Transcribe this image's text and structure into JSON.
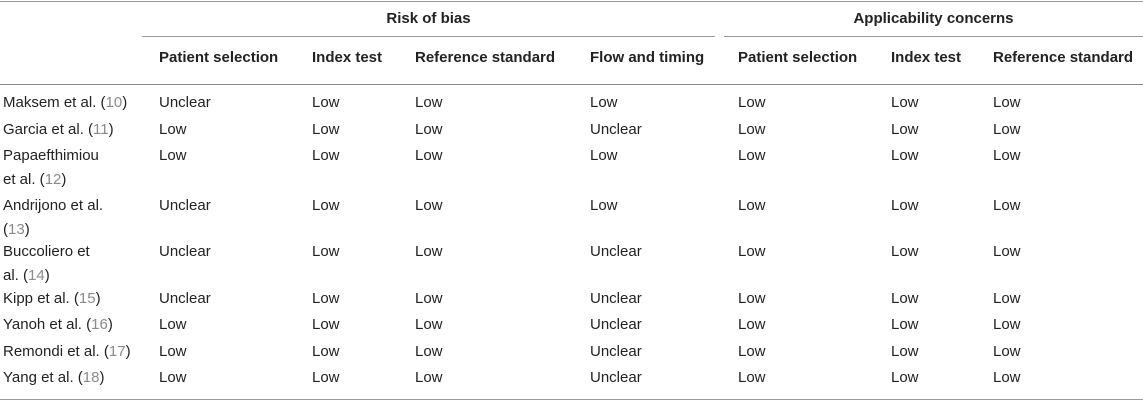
{
  "group_headers": {
    "risk_of_bias": "Risk of bias",
    "applicability": "Applicability concerns"
  },
  "columns": [
    "Patient selection",
    "Index test",
    "Reference standard",
    "Flow and timing",
    "Patient selection",
    "Index test",
    "Reference standard"
  ],
  "rows": [
    {
      "study": "Maksem et al. (",
      "ref": "10",
      "close": ")",
      "values": [
        "Unclear",
        "Low",
        "Low",
        "Low",
        "Low",
        "Low",
        "Low"
      ]
    },
    {
      "study": "Garcia et al. (",
      "ref": "11",
      "close": ")",
      "values": [
        "Low",
        "Low",
        "Low",
        "Unclear",
        "Low",
        "Low",
        "Low"
      ]
    },
    {
      "study": "Papaefthimiou et al. (",
      "ref": "12",
      "close": ")",
      "values": [
        "Low",
        "Low",
        "Low",
        "Low",
        "Low",
        "Low",
        "Low"
      ]
    },
    {
      "study": "Andrijono et al. (",
      "ref": "13",
      "close": ")",
      "values": [
        "Unclear",
        "Low",
        "Low",
        "Low",
        "Low",
        "Low",
        "Low"
      ]
    },
    {
      "study": "Buccoliero et al. (",
      "ref": "14",
      "close": ")",
      "values": [
        "Unclear",
        "Low",
        "Low",
        "Unclear",
        "Low",
        "Low",
        "Low"
      ]
    },
    {
      "study": "Kipp et al. (",
      "ref": "15",
      "close": ")",
      "values": [
        "Unclear",
        "Low",
        "Low",
        "Unclear",
        "Low",
        "Low",
        "Low"
      ]
    },
    {
      "study": "Yanoh et al. (",
      "ref": "16",
      "close": ")",
      "values": [
        "Low",
        "Low",
        "Low",
        "Unclear",
        "Low",
        "Low",
        "Low"
      ]
    },
    {
      "study": "Remondi et al. (",
      "ref": "17",
      "close": ")",
      "values": [
        "Low",
        "Low",
        "Low",
        "Unclear",
        "Low",
        "Low",
        "Low"
      ]
    },
    {
      "study": "Yang et al. (",
      "ref": "18",
      "close": ")",
      "values": [
        "Low",
        "Low",
        "Low",
        "Unclear",
        "Low",
        "Low",
        "Low"
      ]
    }
  ]
}
